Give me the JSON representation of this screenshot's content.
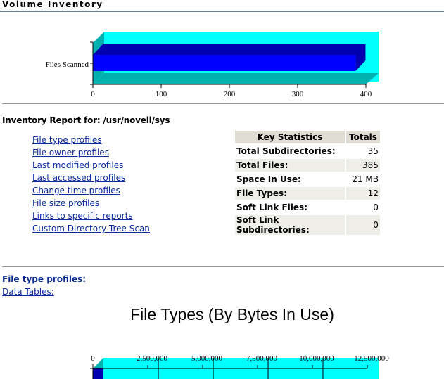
{
  "header": {
    "title": "Volume Inventory"
  },
  "chart_data": [
    {
      "type": "bar",
      "orientation": "horizontal",
      "categories": [
        "Files Scanned"
      ],
      "values": [
        385
      ],
      "xlim": [
        0,
        400
      ],
      "xticks": [
        "0",
        "100",
        "200",
        "300",
        "400"
      ],
      "colors": {
        "bar": "#0000ff",
        "bar_top": "#0000b0",
        "wall": "#00ffff",
        "floor": "#00b0b0"
      }
    },
    {
      "type": "bar",
      "orientation": "horizontal",
      "title": "File Types (By Bytes In Use)",
      "xlim": [
        0,
        12500000
      ],
      "xticks": [
        "0",
        "2,500,000",
        "5,000,000",
        "7,500,000",
        "10,000,000",
        "12,500,000"
      ]
    }
  ],
  "report": {
    "label": "Inventory Report for:",
    "path": "/usr/novell/sys"
  },
  "links": [
    "File type profiles",
    "File owner profiles",
    "Last modified profiles",
    "Last accessed profiles",
    "Change time profiles",
    "File size profiles",
    "Links to specific reports",
    "Custom Directory Tree Scan"
  ],
  "stats": {
    "headers": [
      "Key Statistics",
      "Totals"
    ],
    "rows": [
      {
        "label": "Total Subdirectories:",
        "value": "35"
      },
      {
        "label": "Total Files:",
        "value": "385"
      },
      {
        "label": "Space In Use:",
        "value": "21 MB"
      },
      {
        "label": "File Types:",
        "value": "12"
      },
      {
        "label": "Soft Link Files:",
        "value": "0"
      },
      {
        "label": "Soft Link Subdirectories:",
        "value": "0"
      }
    ]
  },
  "section": {
    "title": "File type profiles:",
    "data_tables": "Data Tables:"
  }
}
